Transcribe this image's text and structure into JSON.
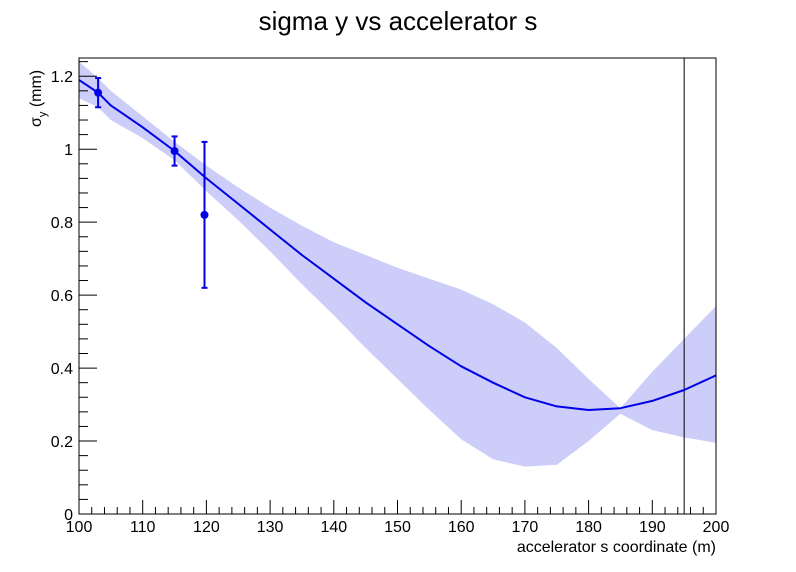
{
  "chart_data": {
    "type": "line",
    "title": "sigma y vs accelerator s",
    "xlabel": "accelerator s coordinate (m)",
    "ylabel_main": "σ",
    "ylabel_sub": "y",
    "ylabel_unit": " (mm)",
    "xlim": [
      100,
      200
    ],
    "ylim": [
      0,
      1.25
    ],
    "x_ticks": [
      100,
      110,
      120,
      130,
      140,
      150,
      160,
      170,
      180,
      190,
      200
    ],
    "y_ticks": [
      0,
      0.2,
      0.4,
      0.6,
      0.8,
      1,
      1.2
    ],
    "x_tick_labels": [
      "100",
      "110",
      "120",
      "130",
      "140",
      "150",
      "160",
      "170",
      "180",
      "190",
      "200"
    ],
    "y_tick_labels": [
      "0",
      "0.2",
      "0.4",
      "0.6",
      "0.8",
      "1",
      "1.2"
    ],
    "measurements": [
      {
        "x": 103,
        "y": 1.155,
        "err": 0.04
      },
      {
        "x": 115,
        "y": 0.995,
        "err": 0.04
      },
      {
        "x": 119.7,
        "y": 0.82,
        "err": 0.2
      }
    ],
    "fit_curve": {
      "x": [
        100,
        103,
        105,
        110,
        115,
        120,
        125,
        130,
        135,
        140,
        145,
        150,
        155,
        160,
        165,
        170,
        175,
        180,
        185,
        190,
        195,
        200
      ],
      "y": [
        1.19,
        1.155,
        1.12,
        1.06,
        0.995,
        0.92,
        0.85,
        0.78,
        0.71,
        0.645,
        0.58,
        0.52,
        0.46,
        0.405,
        0.36,
        0.32,
        0.295,
        0.285,
        0.29,
        0.31,
        0.34,
        0.38
      ]
    },
    "confidence_band": {
      "x": [
        100,
        103,
        105,
        110,
        115,
        120,
        125,
        130,
        135,
        140,
        145,
        150,
        155,
        160,
        165,
        170,
        175,
        180,
        185,
        190,
        195,
        200
      ],
      "upper": [
        1.24,
        1.195,
        1.16,
        1.09,
        1.02,
        0.955,
        0.895,
        0.84,
        0.79,
        0.745,
        0.71,
        0.675,
        0.645,
        0.615,
        0.575,
        0.525,
        0.455,
        0.37,
        0.29,
        0.39,
        0.48,
        0.57
      ],
      "lower": [
        1.14,
        1.115,
        1.08,
        1.03,
        0.97,
        0.885,
        0.805,
        0.72,
        0.63,
        0.545,
        0.455,
        0.37,
        0.285,
        0.205,
        0.15,
        0.13,
        0.135,
        0.2,
        0.275,
        0.23,
        0.21,
        0.195
      ]
    },
    "vertical_marker_x": 195,
    "line_color": "#0000e6",
    "band_color": "#cccdf8",
    "grid": false,
    "legend": "none"
  }
}
